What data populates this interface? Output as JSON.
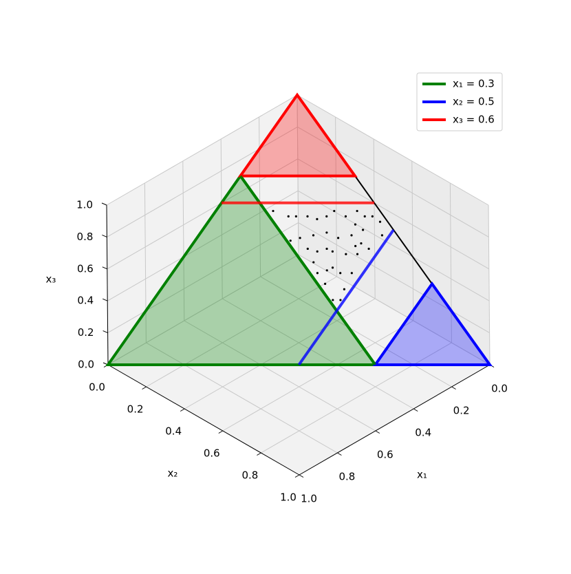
{
  "chart_data": {
    "type": "simplex3d",
    "xlabel": "x₁",
    "ylabel": "x₂",
    "zlabel": "x₃",
    "xlim": [
      0,
      1
    ],
    "ylim": [
      0,
      1
    ],
    "zlim": [
      0,
      1
    ],
    "xticks": [
      {
        "value": 0,
        "label": "0.0"
      },
      {
        "value": 0.2,
        "label": "0.2"
      },
      {
        "value": 0.4,
        "label": "0.4"
      },
      {
        "value": 0.6,
        "label": "0.6"
      },
      {
        "value": 0.8,
        "label": "0.8"
      },
      {
        "value": 1,
        "label": "1.0"
      }
    ],
    "yticks": [
      {
        "value": 0,
        "label": "0.0"
      },
      {
        "value": 0.2,
        "label": "0.2"
      },
      {
        "value": 0.4,
        "label": "0.4"
      },
      {
        "value": 0.6,
        "label": "0.6"
      },
      {
        "value": 0.8,
        "label": "0.8"
      },
      {
        "value": 1,
        "label": "1.0"
      }
    ],
    "zticks": [
      {
        "value": 0,
        "label": "0.0"
      },
      {
        "value": 0.2,
        "label": "0.2"
      },
      {
        "value": 0.4,
        "label": "0.4"
      },
      {
        "value": 0.6,
        "label": "0.6"
      },
      {
        "value": 0.8,
        "label": "0.8"
      },
      {
        "value": 1,
        "label": "1.0"
      }
    ],
    "grid": true,
    "legend": "upper right",
    "simplex_color": "black",
    "series": [
      {
        "name": "x₁ = 0.3",
        "color": "green",
        "level": 0.3,
        "shade_from": 0.3
      },
      {
        "name": "x₂ = 0.5",
        "color": "blue",
        "level": 0.5,
        "shade_from": 0.7
      },
      {
        "name": "x₃ = 0.6",
        "color": "red",
        "level": 0.6,
        "shade_from": 0.7
      }
    ],
    "points": {
      "color": "black",
      "x1": [
        0.05,
        0.1,
        0.15,
        0.2,
        0.25,
        0.28,
        0.02,
        0.08,
        0.12,
        0.18,
        0.22,
        0.26,
        0.04,
        0.14,
        0.2,
        0.24,
        0.29,
        0.1,
        0.17,
        0.27,
        0.22,
        0.25,
        0.19,
        0.28,
        0.24,
        0.29,
        0.27,
        0.06,
        0.12,
        0.23,
        0.16,
        0.09,
        0.21,
        0.13,
        0.26,
        0.03,
        0.18,
        0.11,
        0.23,
        0.28
      ],
      "x2": [
        0.4,
        0.35,
        0.3,
        0.25,
        0.2,
        0.15,
        0.45,
        0.42,
        0.4,
        0.33,
        0.3,
        0.27,
        0.48,
        0.45,
        0.38,
        0.34,
        0.25,
        0.47,
        0.42,
        0.35,
        0.44,
        0.4,
        0.47,
        0.42,
        0.48,
        0.47,
        0.49,
        0.37,
        0.31,
        0.22,
        0.37,
        0.39,
        0.36,
        0.43,
        0.31,
        0.42,
        0.28,
        0.44,
        0.41,
        0.38
      ],
      "x3": [
        0.55,
        0.55,
        0.55,
        0.55,
        0.55,
        0.57,
        0.53,
        0.5,
        0.48,
        0.49,
        0.48,
        0.47,
        0.48,
        0.41,
        0.42,
        0.42,
        0.46,
        0.43,
        0.41,
        0.38,
        0.34,
        0.35,
        0.34,
        0.3,
        0.28,
        0.24,
        0.24,
        0.57,
        0.57,
        0.55,
        0.47,
        0.52,
        0.43,
        0.44,
        0.43,
        0.55,
        0.54,
        0.45,
        0.36,
        0.34
      ]
    }
  }
}
